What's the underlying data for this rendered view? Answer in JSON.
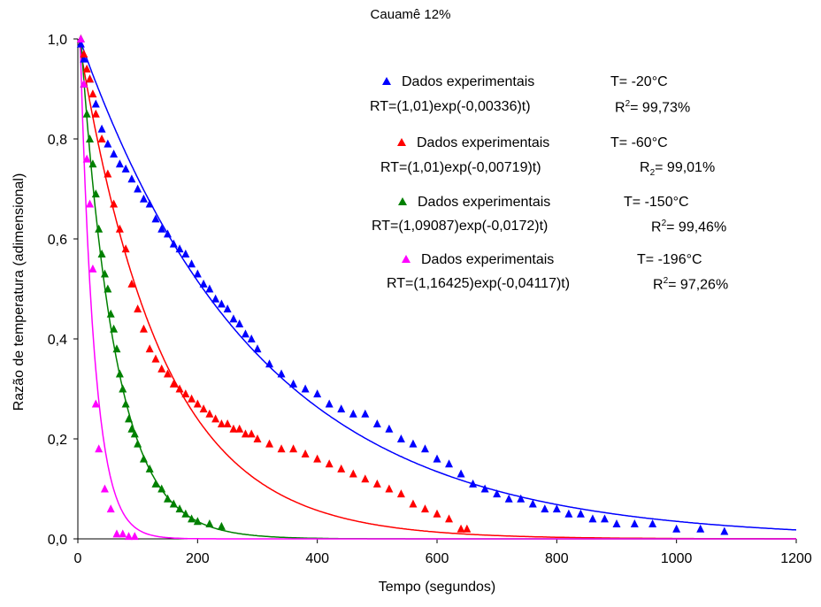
{
  "chart_data": {
    "type": "scatter",
    "title": "Cauamê 12%",
    "xlabel": "Tempo (segundos)",
    "ylabel": "Razão de temperatura (adimensional)",
    "xlim": [
      0,
      1200
    ],
    "ylim": [
      0,
      1.0
    ],
    "xticks": [
      "0",
      "200",
      "400",
      "600",
      "800",
      "1000",
      "1200"
    ],
    "yticks": [
      "0,0",
      "0,2",
      "0,4",
      "0,6",
      "0,8",
      "1,0"
    ],
    "grid": false,
    "legend_position": "top-right",
    "series": [
      {
        "name": "Dados experimentais",
        "temperature": "T= -20°C",
        "equation": "RT=(1,01)exp(-0,00336)t)",
        "r2_label": "R",
        "r2_script": "2",
        "r2_script_type": "sup",
        "r2_value": "= 99,73%",
        "color": "#0000ff",
        "fit": {
          "a": 1.01,
          "k": 0.00336
        },
        "x": [
          5,
          10,
          20,
          30,
          40,
          50,
          60,
          70,
          80,
          90,
          100,
          110,
          120,
          130,
          140,
          150,
          160,
          170,
          180,
          190,
          200,
          210,
          220,
          230,
          240,
          250,
          260,
          270,
          280,
          290,
          300,
          320,
          340,
          360,
          380,
          400,
          420,
          440,
          460,
          480,
          500,
          520,
          540,
          560,
          580,
          600,
          620,
          640,
          660,
          680,
          700,
          720,
          740,
          760,
          780,
          800,
          820,
          840,
          860,
          880,
          900,
          930,
          960,
          1000,
          1040,
          1080
        ],
        "y": [
          0.99,
          0.96,
          0.92,
          0.87,
          0.82,
          0.79,
          0.77,
          0.75,
          0.74,
          0.72,
          0.7,
          0.68,
          0.67,
          0.64,
          0.62,
          0.61,
          0.59,
          0.58,
          0.57,
          0.55,
          0.53,
          0.51,
          0.5,
          0.48,
          0.47,
          0.46,
          0.44,
          0.43,
          0.41,
          0.4,
          0.38,
          0.35,
          0.33,
          0.31,
          0.3,
          0.29,
          0.27,
          0.26,
          0.25,
          0.25,
          0.23,
          0.22,
          0.2,
          0.19,
          0.18,
          0.16,
          0.15,
          0.13,
          0.11,
          0.1,
          0.09,
          0.08,
          0.08,
          0.07,
          0.06,
          0.06,
          0.05,
          0.05,
          0.04,
          0.04,
          0.03,
          0.03,
          0.03,
          0.02,
          0.02,
          0.015
        ]
      },
      {
        "name": "Dados experimentais",
        "temperature": "T= -60°C",
        "equation": "RT=(1,01)exp(-0,00719)t)",
        "r2_label": "R",
        "r2_script": "2",
        "r2_script_type": "sub",
        "r2_value": "= 99,01%",
        "color": "#ff0000",
        "fit": {
          "a": 1.01,
          "k": 0.00719
        },
        "x": [
          5,
          10,
          15,
          20,
          25,
          30,
          40,
          50,
          60,
          70,
          80,
          90,
          100,
          110,
          120,
          130,
          140,
          150,
          160,
          170,
          180,
          190,
          200,
          210,
          220,
          230,
          240,
          250,
          260,
          270,
          280,
          290,
          300,
          320,
          340,
          360,
          380,
          400,
          420,
          440,
          460,
          480,
          500,
          520,
          540,
          560,
          580,
          600,
          620,
          640,
          650
        ],
        "y": [
          1.0,
          0.97,
          0.94,
          0.92,
          0.89,
          0.85,
          0.8,
          0.73,
          0.67,
          0.62,
          0.58,
          0.51,
          0.46,
          0.42,
          0.38,
          0.36,
          0.34,
          0.33,
          0.31,
          0.3,
          0.29,
          0.28,
          0.27,
          0.26,
          0.25,
          0.24,
          0.23,
          0.23,
          0.22,
          0.22,
          0.21,
          0.21,
          0.2,
          0.19,
          0.18,
          0.18,
          0.17,
          0.16,
          0.15,
          0.14,
          0.13,
          0.12,
          0.11,
          0.1,
          0.09,
          0.07,
          0.06,
          0.05,
          0.04,
          0.02,
          0.02
        ]
      },
      {
        "name": "Dados experimentais",
        "temperature": "T= -150°C",
        "equation": "RT=(1,09087)exp(-0,0172)t)",
        "r2_label": "R",
        "r2_script": "2",
        "r2_script_type": "sup",
        "r2_value": "= 99,46%",
        "color": "#008000",
        "fit": {
          "a": 1.09087,
          "k": 0.0172
        },
        "x": [
          5,
          10,
          15,
          20,
          25,
          30,
          35,
          40,
          45,
          50,
          55,
          60,
          65,
          70,
          75,
          80,
          85,
          90,
          95,
          100,
          110,
          120,
          130,
          140,
          150,
          160,
          170,
          180,
          190,
          200,
          220,
          240
        ],
        "y": [
          1.0,
          0.91,
          0.85,
          0.8,
          0.75,
          0.69,
          0.62,
          0.57,
          0.53,
          0.5,
          0.45,
          0.42,
          0.38,
          0.33,
          0.3,
          0.27,
          0.24,
          0.22,
          0.21,
          0.19,
          0.16,
          0.14,
          0.11,
          0.1,
          0.08,
          0.07,
          0.06,
          0.05,
          0.04,
          0.035,
          0.03,
          0.025
        ]
      },
      {
        "name": "Dados experimentais",
        "temperature": "T= -196°C",
        "equation": "RT=(1,16425)exp(-0,04117)t)",
        "r2_label": "R",
        "r2_script": "2",
        "r2_script_type": "sup",
        "r2_value": "= 97,26%",
        "color": "#ff00ff",
        "fit": {
          "a": 1.16425,
          "k": 0.04117
        },
        "x": [
          5,
          10,
          15,
          20,
          25,
          30,
          35,
          45,
          55,
          65,
          75,
          85,
          95
        ],
        "y": [
          1.0,
          0.91,
          0.76,
          0.67,
          0.54,
          0.27,
          0.18,
          0.1,
          0.06,
          0.01,
          0.01,
          0.005,
          0.005
        ]
      }
    ]
  }
}
